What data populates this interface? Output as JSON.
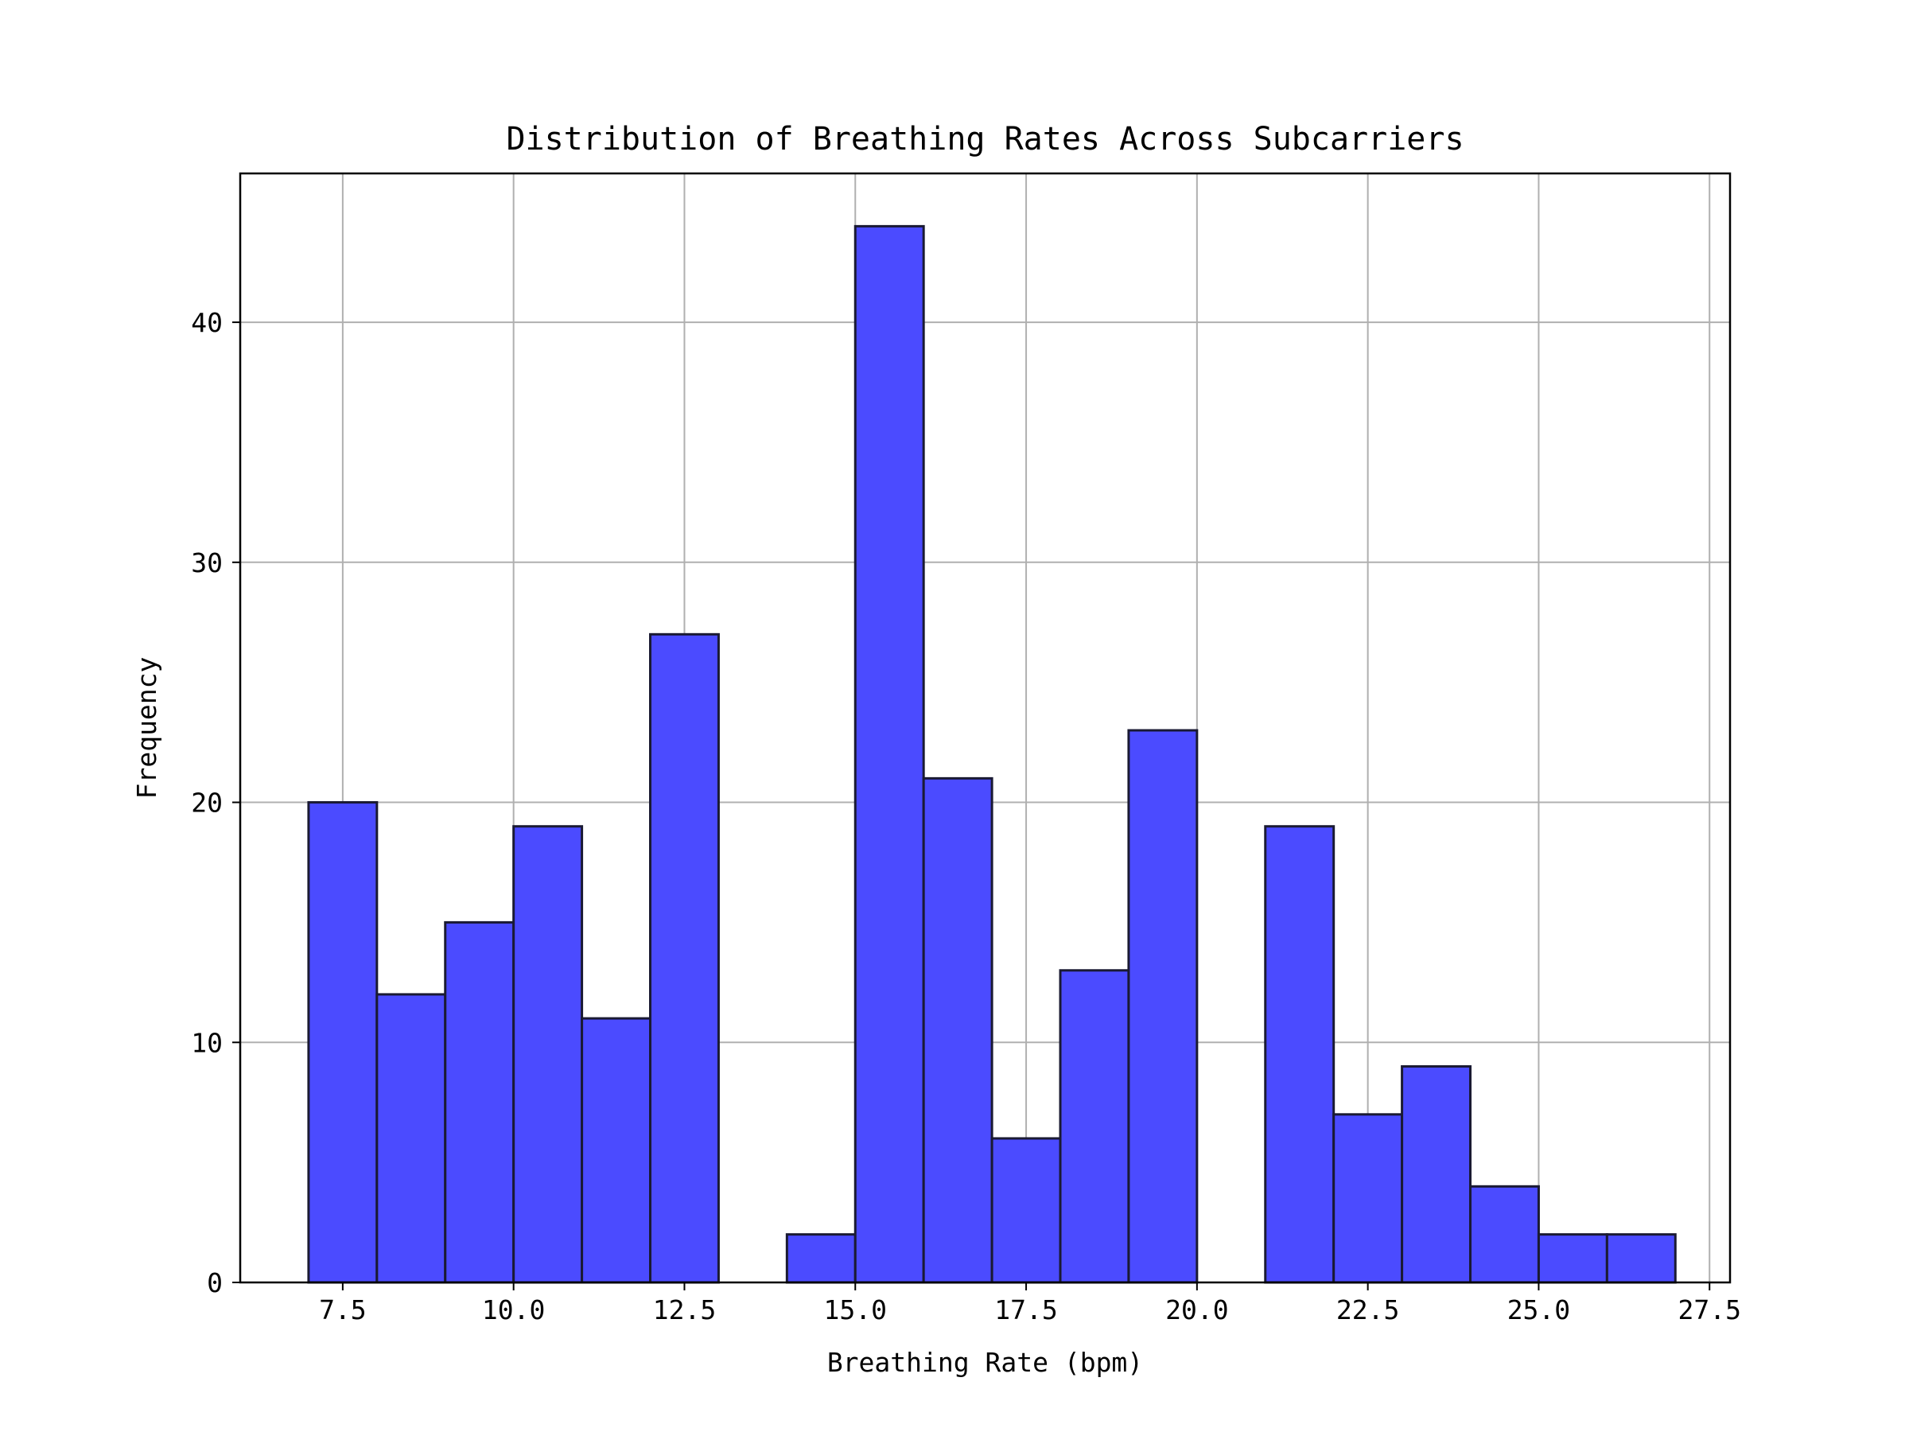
{
  "chart_data": {
    "type": "bar",
    "title": "Distribution of Breathing Rates Across Subcarriers",
    "xlabel": "Breathing Rate (bpm)",
    "ylabel": "Frequency",
    "xlim": [
      6.0,
      27.8
    ],
    "ylim": [
      0,
      46.2
    ],
    "grid": true,
    "x_ticks": [
      7.5,
      10.0,
      12.5,
      15.0,
      17.5,
      20.0,
      22.5,
      25.0,
      27.5
    ],
    "x_tick_labels": [
      "7.5",
      "10.0",
      "12.5",
      "15.0",
      "17.5",
      "20.0",
      "22.5",
      "25.0",
      "27.5"
    ],
    "y_ticks": [
      0,
      10,
      20,
      30,
      40
    ],
    "y_tick_labels": [
      "0",
      "10",
      "20",
      "30",
      "40"
    ],
    "bar_color": "#4b4bff",
    "edge_color": "#1a1a33",
    "bins": [
      {
        "x0": 7.0,
        "x1": 8.0,
        "count": 20
      },
      {
        "x0": 8.0,
        "x1": 9.0,
        "count": 12
      },
      {
        "x0": 9.0,
        "x1": 10.0,
        "count": 15
      },
      {
        "x0": 10.0,
        "x1": 11.0,
        "count": 19
      },
      {
        "x0": 11.0,
        "x1": 12.0,
        "count": 11
      },
      {
        "x0": 12.0,
        "x1": 13.0,
        "count": 27
      },
      {
        "x0": 13.0,
        "x1": 14.0,
        "count": 0
      },
      {
        "x0": 14.0,
        "x1": 15.0,
        "count": 2
      },
      {
        "x0": 15.0,
        "x1": 16.0,
        "count": 44
      },
      {
        "x0": 16.0,
        "x1": 17.0,
        "count": 21
      },
      {
        "x0": 17.0,
        "x1": 18.0,
        "count": 6
      },
      {
        "x0": 18.0,
        "x1": 19.0,
        "count": 13
      },
      {
        "x0": 19.0,
        "x1": 20.0,
        "count": 23
      },
      {
        "x0": 20.0,
        "x1": 21.0,
        "count": 0
      },
      {
        "x0": 21.0,
        "x1": 22.0,
        "count": 19
      },
      {
        "x0": 22.0,
        "x1": 23.0,
        "count": 7
      },
      {
        "x0": 23.0,
        "x1": 24.0,
        "count": 9
      },
      {
        "x0": 24.0,
        "x1": 25.0,
        "count": 4
      },
      {
        "x0": 25.0,
        "x1": 26.0,
        "count": 2
      },
      {
        "x0": 26.0,
        "x1": 27.0,
        "count": 2
      }
    ]
  }
}
